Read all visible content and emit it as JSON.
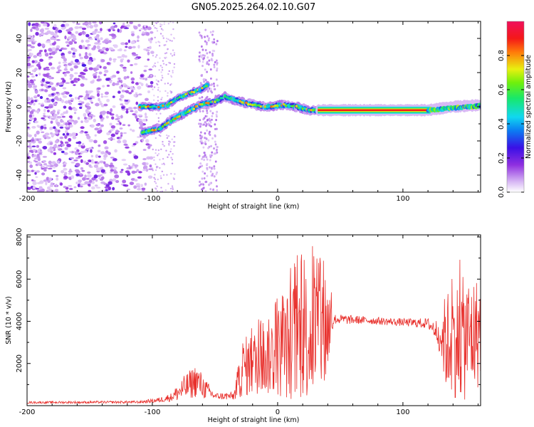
{
  "chart_data": [
    {
      "type": "heatmap",
      "title": "GN05.2025.264.02.10.G07",
      "xlabel": "Height of straight line (km)",
      "ylabel": "Frequency (Hz)",
      "xlim": [
        -200,
        162
      ],
      "ylim": [
        -50,
        50
      ],
      "xticks": [
        -200,
        -100,
        0,
        100
      ],
      "yticks": [
        -40,
        -20,
        0,
        20,
        40
      ],
      "xtick_labels": [
        "-200",
        "-100",
        "0",
        "100"
      ],
      "ytick_labels": [
        "-40",
        "-20",
        "0",
        "20",
        "40"
      ],
      "colorbar": {
        "label": "Normalized spectral amplitude",
        "range": [
          0,
          1
        ],
        "ticks": [
          0.0,
          0.2,
          0.4,
          0.6,
          0.8
        ],
        "tick_labels": [
          "0.0",
          "0.2",
          "0.4",
          "0.6",
          "0.8"
        ],
        "colormap": "rainbow (white-violet-blue-cyan-green-yellow-red-magenta)"
      },
      "noise_region": {
        "x": [
          -200,
          -100
        ],
        "y": [
          -50,
          50
        ]
      },
      "noise_streak": {
        "x": [
          -63,
          -48
        ],
        "y": [
          -50,
          45
        ]
      },
      "tracks": [
        {
          "name": "lower branch",
          "points": [
            [
              -108,
              -15
            ],
            [
              -95,
              -13
            ],
            [
              -85,
              -8
            ],
            [
              -75,
              -4
            ],
            [
              -62,
              1
            ],
            [
              -50,
              3
            ],
            [
              -42,
              6
            ],
            [
              -35,
              4
            ],
            [
              -25,
              2
            ],
            [
              -10,
              0
            ],
            [
              5,
              1
            ],
            [
              15,
              0
            ],
            [
              25,
              -2
            ],
            [
              32,
              -2
            ]
          ]
        },
        {
          "name": "upper branch",
          "points": [
            [
              -110,
              0
            ],
            [
              -95,
              0
            ],
            [
              -88,
              1
            ],
            [
              -80,
              5
            ],
            [
              -70,
              8
            ],
            [
              -62,
              10
            ],
            [
              -55,
              13
            ]
          ]
        },
        {
          "name": "steady carrier",
          "points": [
            [
              32,
              -2
            ],
            [
              60,
              -2
            ],
            [
              90,
              -2
            ],
            [
              120,
              -2
            ],
            [
              140,
              0
            ],
            [
              162,
              1
            ]
          ]
        }
      ]
    },
    {
      "type": "line",
      "xlabel": "Height of straight line (km)",
      "ylabel": "SNR (10 * v/v)",
      "xlim": [
        -200,
        162
      ],
      "ylim": [
        0,
        8100
      ],
      "xticks": [
        -200,
        -100,
        0,
        100
      ],
      "yticks": [
        2000,
        4000,
        6000,
        8000
      ],
      "xtick_labels": [
        "-200",
        "-100",
        "0",
        "100"
      ],
      "ytick_labels": [
        "2000",
        "4000",
        "6000",
        "8000"
      ],
      "series": [
        {
          "name": "SNR",
          "color": "#e8302c",
          "envelope": [
            {
              "x": -200,
              "base": 150,
              "amp": 50
            },
            {
              "x": -110,
              "base": 170,
              "amp": 60
            },
            {
              "x": -95,
              "base": 260,
              "amp": 120
            },
            {
              "x": -85,
              "base": 400,
              "amp": 200
            },
            {
              "x": -75,
              "base": 800,
              "amp": 600
            },
            {
              "x": -65,
              "base": 1200,
              "amp": 800
            },
            {
              "x": -58,
              "base": 800,
              "amp": 500
            },
            {
              "x": -50,
              "base": 450,
              "amp": 150
            },
            {
              "x": -35,
              "base": 450,
              "amp": 200
            },
            {
              "x": -28,
              "base": 1800,
              "amp": 1400
            },
            {
              "x": -10,
              "base": 2200,
              "amp": 1700
            },
            {
              "x": 5,
              "base": 2700,
              "amp": 2400
            },
            {
              "x": 20,
              "base": 3400,
              "amp": 3200
            },
            {
              "x": 38,
              "base": 3600,
              "amp": 3200
            },
            {
              "x": 45,
              "base": 4100,
              "amp": 250
            },
            {
              "x": 70,
              "base": 4050,
              "amp": 180
            },
            {
              "x": 100,
              "base": 3950,
              "amp": 180
            },
            {
              "x": 120,
              "base": 3900,
              "amp": 250
            },
            {
              "x": 128,
              "base": 3500,
              "amp": 600
            },
            {
              "x": 135,
              "base": 3000,
              "amp": 2500
            },
            {
              "x": 150,
              "base": 3200,
              "amp": 3000
            },
            {
              "x": 162,
              "base": 3500,
              "amp": 2600
            }
          ]
        }
      ]
    }
  ]
}
